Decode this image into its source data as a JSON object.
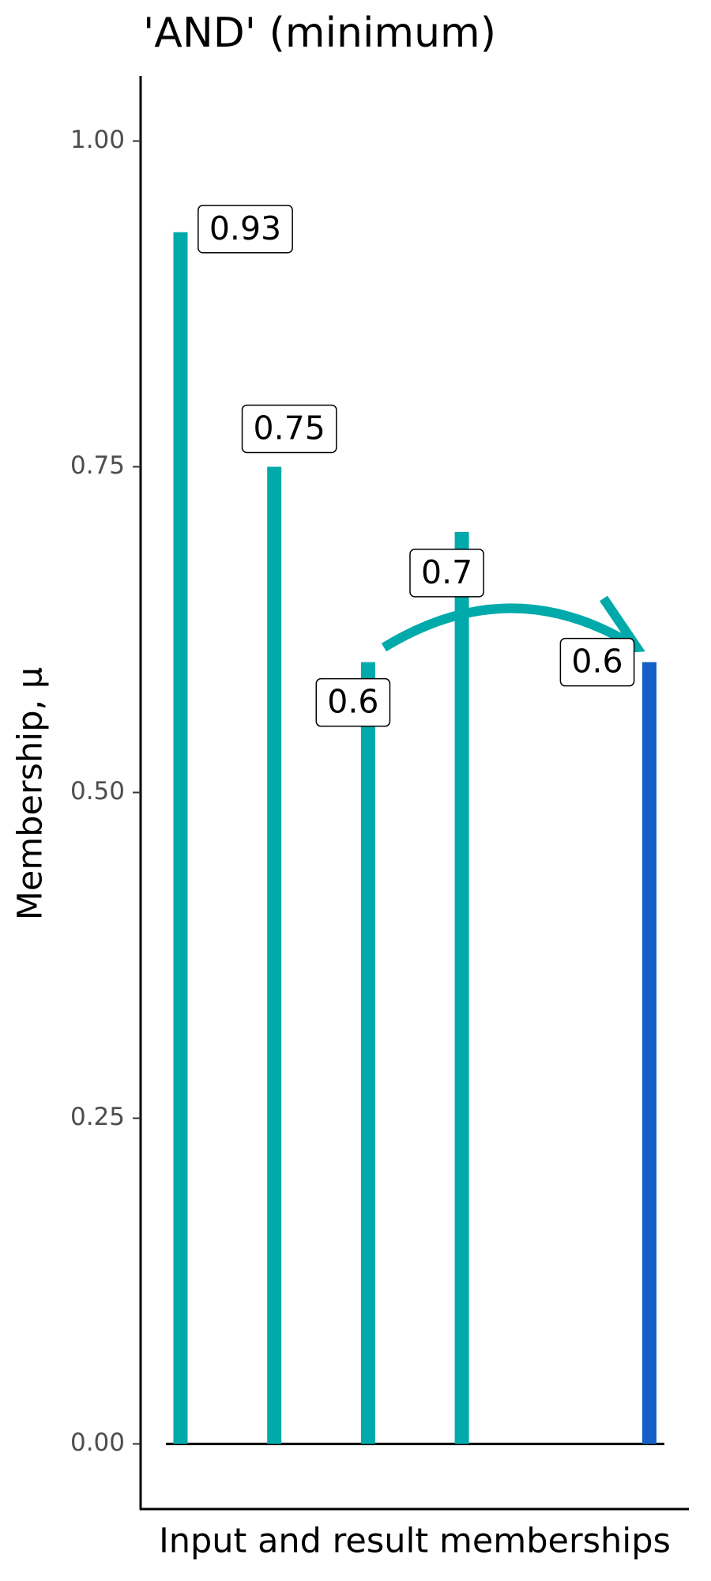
{
  "chart_data": {
    "type": "bar",
    "title": "'AND' (minimum)",
    "x_label": "Input and result memberships",
    "y_label": "Membership, μ",
    "categories": [
      null,
      null,
      null,
      null,
      null,
      null
    ],
    "values": [
      0.93,
      0.75,
      0.6,
      0.7,
      null,
      0.6
    ],
    "colors": [
      "#00aaaa",
      "#00aaaa",
      "#00aaaa",
      "#00aaaa",
      null,
      "#1560c8"
    ],
    "ylim": [
      -0.05,
      1.05
    ],
    "yticks": [
      {
        "value": 0,
        "label": "0.00"
      },
      {
        "value": 0.25,
        "label": "0.25"
      },
      {
        "value": 0.5,
        "label": "0.50"
      },
      {
        "value": 0.75,
        "label": "0.75"
      },
      {
        "value": 1,
        "label": "1.00"
      }
    ],
    "grid": false
  }
}
